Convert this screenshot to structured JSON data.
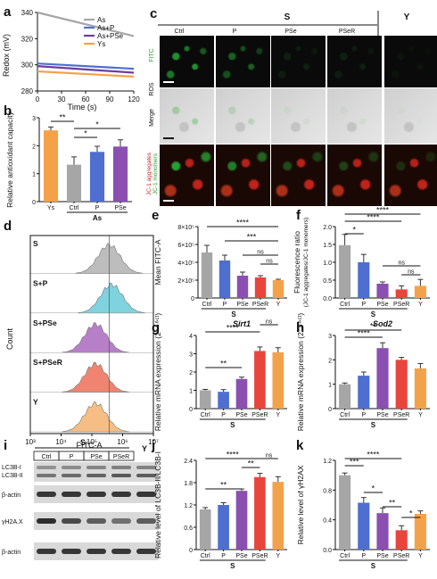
{
  "panels": {
    "a": {
      "letter": "a",
      "chart_data": {
        "type": "line",
        "xlabel": "Time (s)",
        "ylabel": "Redox (mV)",
        "xlim": [
          0,
          120
        ],
        "ylim": [
          280,
          340
        ],
        "xticks": [
          0,
          30,
          60,
          90,
          120
        ],
        "yticks": [
          280,
          300,
          320,
          340
        ],
        "legend_position": "top-right",
        "series": [
          {
            "name": "As",
            "color": "#a6a6a6",
            "x": [
              0,
              120
            ],
            "y": [
              340,
              322
            ]
          },
          {
            "name": "As+P",
            "color": "#4e6fd0",
            "x": [
              0,
              120
            ],
            "y": [
              301,
              297
            ]
          },
          {
            "name": "As+PSe",
            "color": "#6a3fa0",
            "x": [
              0,
              120
            ],
            "y": [
              299,
              294
            ]
          },
          {
            "name": "Ys",
            "color": "#f4a24a",
            "x": [
              0,
              120
            ],
            "y": [
              295,
              291
            ]
          }
        ]
      }
    },
    "b": {
      "letter": "b",
      "chart_data": {
        "type": "bar",
        "ylabel": "Relative antioxidant capacity",
        "categories": [
          "Ys",
          "Ctrl",
          "P",
          "PSe"
        ],
        "group_label": "As",
        "values": [
          2.55,
          1.32,
          1.78,
          1.97
        ],
        "errors": [
          0.12,
          0.28,
          0.2,
          0.24
        ],
        "colors": [
          "#f4a24a",
          "#a6a6a6",
          "#4e6fd0",
          "#8a4fb0"
        ],
        "ylim": [
          0,
          3
        ],
        "yticks": [
          0,
          1,
          2,
          3
        ],
        "significance": [
          {
            "from": 0,
            "to": 1,
            "label": "**"
          },
          {
            "from": 1,
            "to": 2,
            "label": "*"
          },
          {
            "from": 1,
            "to": 3,
            "label": "*"
          }
        ]
      }
    },
    "c": {
      "letter": "c",
      "group_s": "S",
      "group_y": "Y",
      "columns": [
        "Ctrl",
        "P",
        "PSe",
        "PSeR"
      ],
      "row_labels": {
        "ros": "ROS",
        "fitc": "FITC",
        "merge": "Merge",
        "jc1_agg": "JC-1 aggregates",
        "jc1_mono": "JC-1 monomers"
      }
    },
    "d": {
      "letter": "d",
      "ylabel": "Count",
      "xlabel": "FITC-A",
      "xticks": [
        "10³",
        "10⁴",
        "10⁵",
        "10⁶",
        "10⁷"
      ],
      "rows": [
        {
          "label": "S",
          "color": "#bdbdbd"
        },
        {
          "label": "S+P",
          "color": "#7fd3df"
        },
        {
          "label": "S+PSe",
          "color": "#b77fc8"
        },
        {
          "label": "S+PSeR",
          "color": "#f08470"
        },
        {
          "label": "Y",
          "color": "#f6be84"
        }
      ]
    },
    "e": {
      "letter": "e",
      "chart_data": {
        "type": "bar",
        "ylabel": "Mean FITC-A",
        "categories": [
          "Ctrl",
          "P",
          "PSe",
          "PSeR",
          "Y"
        ],
        "group_label": "S",
        "values": [
          5.1,
          4.2,
          2.5,
          2.3,
          2.0
        ],
        "errors": [
          0.8,
          0.6,
          0.4,
          0.2,
          0.1
        ],
        "colors": [
          "#a6a6a6",
          "#4e6fd0",
          "#8a4fb0",
          "#e8453c",
          "#f4a24a"
        ],
        "ylim": [
          0,
          8
        ],
        "yticks": [
          0,
          2,
          4,
          6,
          8
        ],
        "yticklabels": [
          "0",
          "2×10⁵",
          "4×10⁵",
          "6×10⁵",
          "8×10⁵"
        ],
        "significance": [
          {
            "from": 0,
            "to": 4,
            "label": "****"
          },
          {
            "from": 1,
            "to": 4,
            "label": "***"
          },
          {
            "from": 2,
            "to": 4,
            "label": "ns"
          },
          {
            "from": 3,
            "to": 4,
            "label": "ns"
          }
        ]
      }
    },
    "f": {
      "letter": "f",
      "chart_data": {
        "type": "bar",
        "ylabel": "Fluorescence ratio",
        "ylabel2": "(JC-1 aggregates/JC-1 monomers)",
        "categories": [
          "Ctrl",
          "P",
          "PSe",
          "PSeR",
          "Y"
        ],
        "group_label": "S",
        "values": [
          1.48,
          1.0,
          0.4,
          0.24,
          0.34
        ],
        "errors": [
          0.3,
          0.22,
          0.05,
          0.1,
          0.18
        ],
        "colors": [
          "#a6a6a6",
          "#4e6fd0",
          "#8a4fb0",
          "#e8453c",
          "#f4a24a"
        ],
        "ylim": [
          0,
          2
        ],
        "yticks": [
          0,
          0.5,
          1.0,
          1.5,
          2.0
        ],
        "yticklabels": [
          "0.0",
          "0.5",
          "1.0",
          "1.5",
          "2.0"
        ],
        "significance": [
          {
            "from": 0,
            "to": 4,
            "label": "****"
          },
          {
            "from": 0,
            "to": 3,
            "label": "****"
          },
          {
            "from": 0,
            "to": 1,
            "label": "*"
          },
          {
            "from": 2,
            "to": 4,
            "label": "ns"
          },
          {
            "from": 3,
            "to": 4,
            "label": "ns"
          }
        ]
      }
    },
    "g": {
      "letter": "g",
      "chart_data": {
        "type": "bar",
        "title": "Sirt1",
        "ylabel": "Relative mRNA expression (2⁻ᐞᐞᶜᵗ)",
        "categories": [
          "Ctrl",
          "P",
          "PSe",
          "PSeR",
          "Y"
        ],
        "group_label": "S",
        "values": [
          1.0,
          0.92,
          1.62,
          3.15,
          3.08
        ],
        "errors": [
          0.05,
          0.12,
          0.1,
          0.22,
          0.25
        ],
        "colors": [
          "#a6a6a6",
          "#4e6fd0",
          "#8a4fb0",
          "#e8453c",
          "#f4a24a"
        ],
        "ylim": [
          0,
          4
        ],
        "yticks": [
          0,
          1,
          2,
          3,
          4
        ],
        "significance": [
          {
            "from": 0,
            "to": 3,
            "label": "****"
          },
          {
            "from": 0,
            "to": 2,
            "label": "**"
          },
          {
            "from": 3,
            "to": 4,
            "label": "ns"
          }
        ]
      }
    },
    "h": {
      "letter": "h",
      "chart_data": {
        "type": "bar",
        "title": "Sod2",
        "ylabel": "Relative mRNA expression (2⁻ᐞᐞᶜᵗ)",
        "categories": [
          "Ctrl",
          "P",
          "PSe",
          "PSeR",
          "Y"
        ],
        "group_label": "S",
        "values": [
          1.0,
          1.35,
          2.48,
          2.0,
          1.65
        ],
        "errors": [
          0.05,
          0.15,
          0.22,
          0.1,
          0.2
        ],
        "colors": [
          "#a6a6a6",
          "#4e6fd0",
          "#8a4fb0",
          "#e8453c",
          "#f4a24a"
        ],
        "ylim": [
          0,
          3
        ],
        "yticks": [
          0,
          1,
          2,
          3
        ],
        "significance": [
          {
            "from": 0,
            "to": 3,
            "label": "**"
          },
          {
            "from": 0,
            "to": 2,
            "label": "****"
          }
        ]
      }
    },
    "i": {
      "letter": "i",
      "group_s": "S",
      "group_y": "Y",
      "lanes": [
        "Ctrl",
        "P",
        "PSe",
        "PSeR"
      ],
      "blots": [
        "LC3B-I",
        "LC3B-II",
        "β-actin",
        "γH2A.X",
        "β-actin"
      ]
    },
    "j": {
      "letter": "j",
      "chart_data": {
        "type": "bar",
        "ylabel": "Relative level of LC3B-II/LC3B-I",
        "categories": [
          "Ctrl",
          "P",
          "PSe",
          "PSeR",
          "Y"
        ],
        "group_label": "S",
        "values": [
          1.08,
          1.2,
          1.58,
          1.95,
          1.82
        ],
        "errors": [
          0.05,
          0.06,
          0.05,
          0.1,
          0.14
        ],
        "colors": [
          "#a6a6a6",
          "#4e6fd0",
          "#8a4fb0",
          "#e8453c",
          "#f4a24a"
        ],
        "ylim": [
          0,
          2.4
        ],
        "yticks": [
          0,
          0.6,
          1.2,
          1.8,
          2.4
        ],
        "yticklabels": [
          "0",
          "0.6",
          "1.2",
          "1.8",
          "2.4"
        ],
        "significance": [
          {
            "from": 0,
            "to": 3,
            "label": "****"
          },
          {
            "from": 2,
            "to": 3,
            "label": "**"
          },
          {
            "from": 3,
            "to": 4,
            "label": "ns"
          },
          {
            "from": 0,
            "to": 2,
            "label": "**"
          }
        ]
      }
    },
    "k": {
      "letter": "k",
      "chart_data": {
        "type": "bar",
        "ylabel": "Relative level of γH2AX",
        "categories": [
          "Ctrl",
          "P",
          "PSe",
          "PSeR",
          "Y"
        ],
        "group_label": "S",
        "values": [
          1.0,
          0.63,
          0.49,
          0.26,
          0.48
        ],
        "errors": [
          0.03,
          0.07,
          0.07,
          0.06,
          0.04
        ],
        "colors": [
          "#a6a6a6",
          "#4e6fd0",
          "#8a4fb0",
          "#e8453c",
          "#f4a24a"
        ],
        "ylim": [
          0,
          1.2
        ],
        "yticks": [
          0,
          0.4,
          0.8,
          1.2
        ],
        "yticklabels": [
          "0.0",
          "0.4",
          "0.8",
          "1.2"
        ],
        "significance": [
          {
            "from": 0,
            "to": 3,
            "label": "****"
          },
          {
            "from": 0,
            "to": 1,
            "label": "***"
          },
          {
            "from": 1,
            "to": 2,
            "label": "*"
          },
          {
            "from": 2,
            "to": 3,
            "label": "**"
          },
          {
            "from": 3,
            "to": 4,
            "label": "*"
          }
        ]
      }
    }
  }
}
